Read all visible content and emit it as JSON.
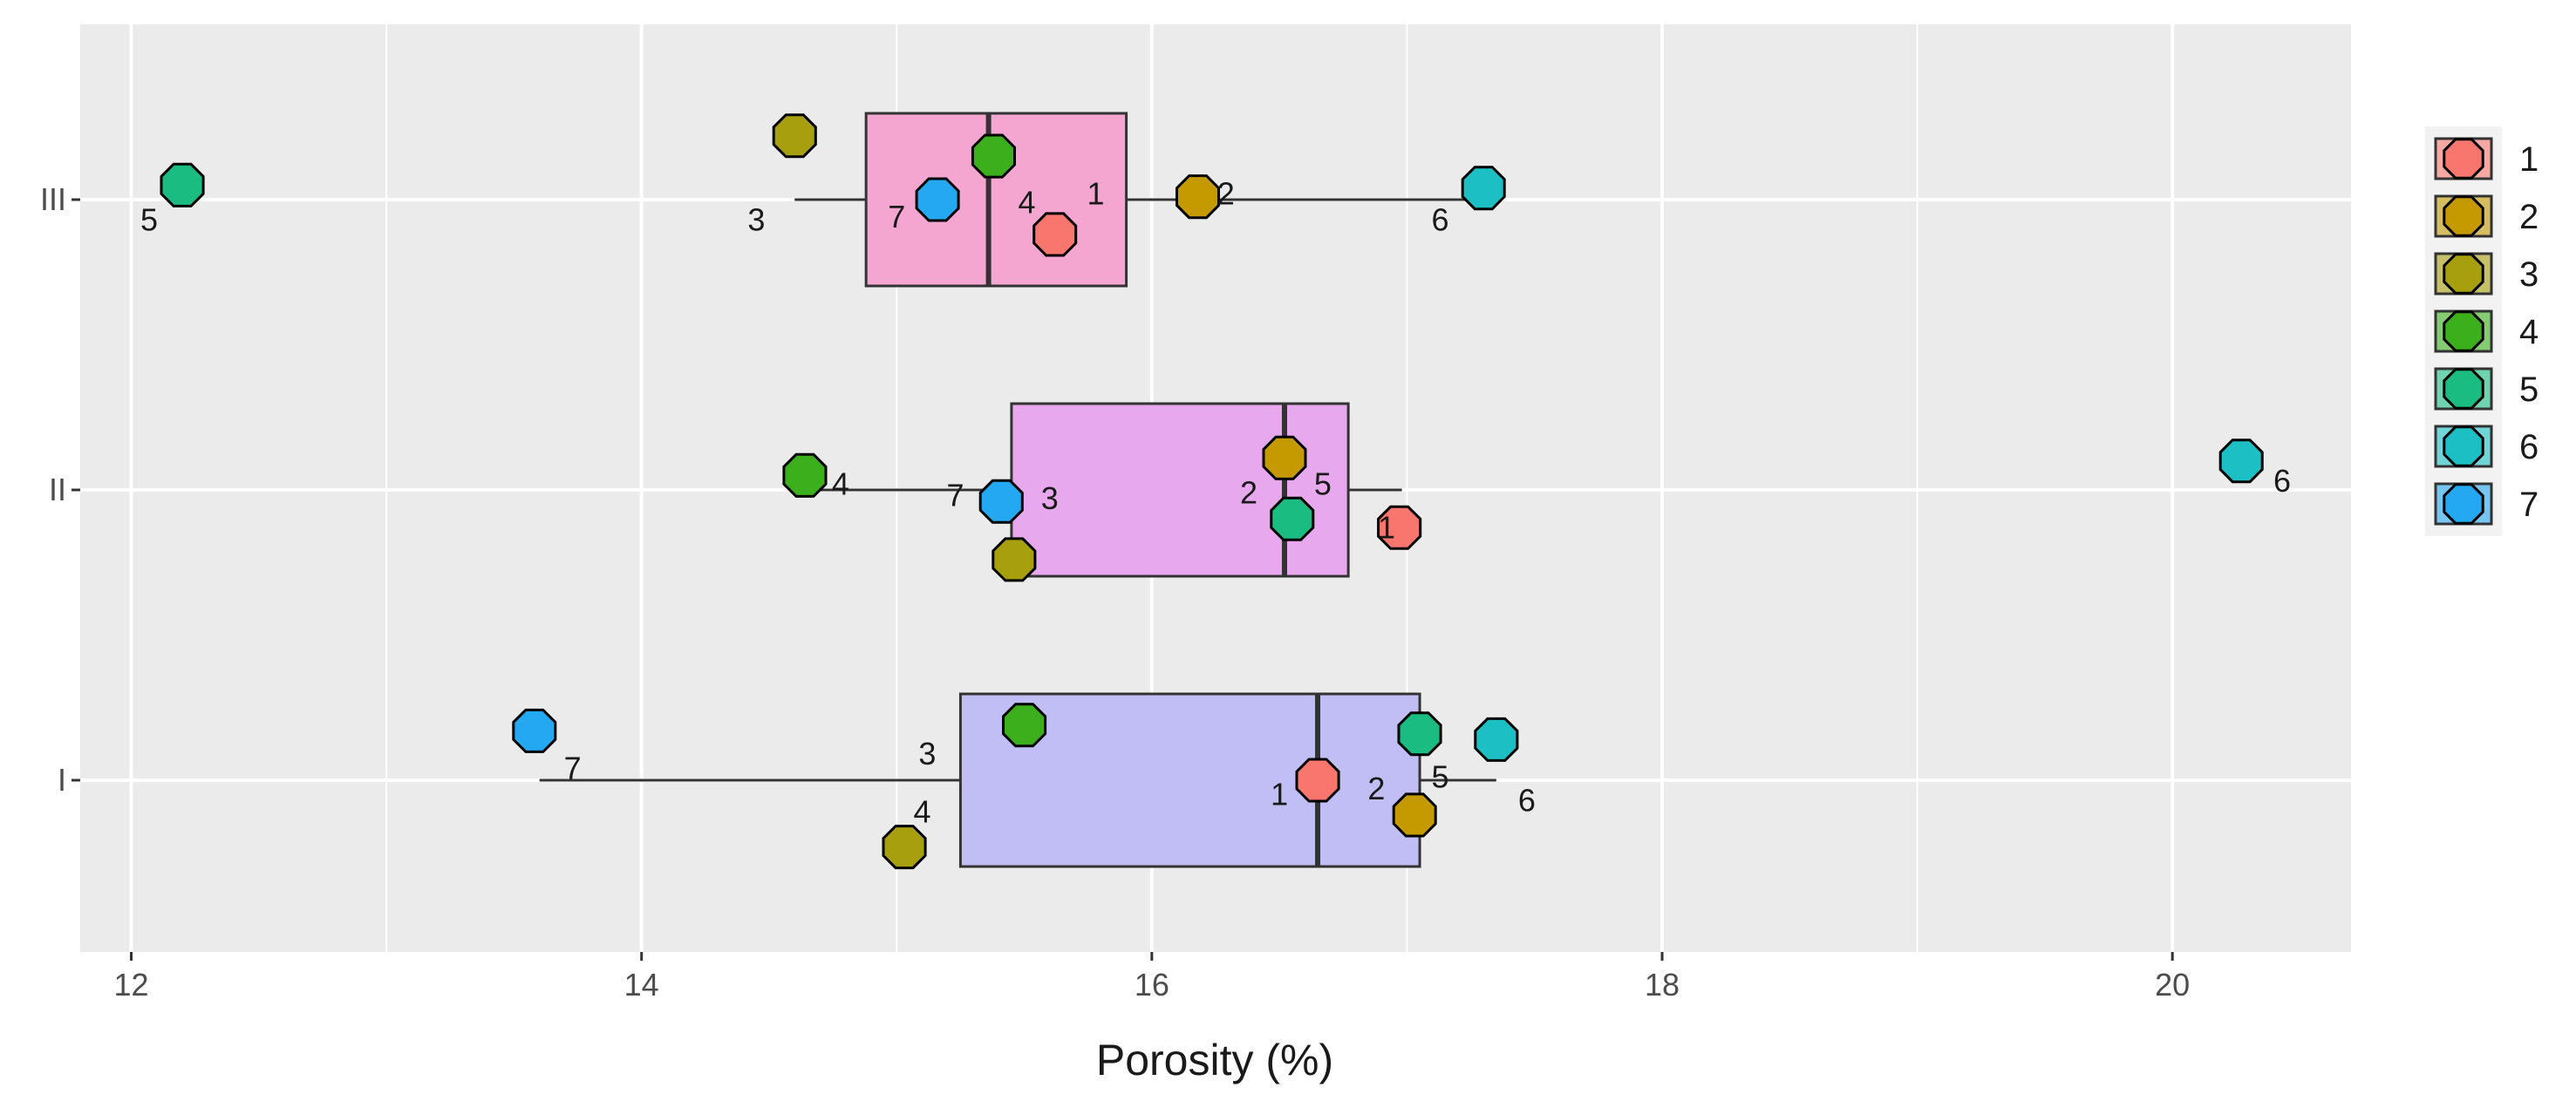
{
  "chart_data": {
    "type": "boxplot",
    "orientation": "horizontal",
    "title": "",
    "xlabel": "Porosity (%)",
    "ylabel": "",
    "xlim": [
      11.8,
      20.7
    ],
    "x_ticks": [
      {
        "value": 12,
        "label": "12"
      },
      {
        "value": 14,
        "label": "14"
      },
      {
        "value": 16,
        "label": "16"
      },
      {
        "value": 18,
        "label": "18"
      },
      {
        "value": 20,
        "label": "20"
      }
    ],
    "categories": [
      "I",
      "II",
      "III"
    ],
    "groups": [
      {
        "name": "I",
        "fill": "#C0BEF4",
        "box": {
          "min": 13.6,
          "q1": 15.25,
          "median": 16.65,
          "q3": 17.05,
          "max": 17.35
        },
        "points": [
          {
            "series": "1",
            "value": 16.65,
            "jitter": 0.0,
            "label": "1",
            "label_value": 16.5,
            "label_jitter": -0.05
          },
          {
            "series": "2",
            "value": 17.03,
            "jitter": -0.12,
            "label": "2",
            "label_value": 16.88,
            "label_jitter": -0.03
          },
          {
            "series": "3",
            "value": 15.03,
            "jitter": -0.23,
            "label": "3",
            "label_value": 15.12,
            "label_jitter": 0.09
          },
          {
            "series": "4",
            "value": 15.5,
            "jitter": 0.19,
            "label": "4",
            "label_value": 15.1,
            "label_jitter": -0.11
          },
          {
            "series": "5",
            "value": 17.05,
            "jitter": 0.16,
            "label": "5",
            "label_value": 17.13,
            "label_jitter": 0.01
          },
          {
            "series": "6",
            "value": 17.35,
            "jitter": 0.14,
            "label": "6",
            "label_value": 17.47,
            "label_jitter": -0.07
          },
          {
            "series": "7",
            "value": 13.58,
            "jitter": 0.17,
            "label": "7",
            "label_value": 13.73,
            "label_jitter": 0.04
          }
        ]
      },
      {
        "name": "II",
        "fill": "#E8A8EE",
        "box": {
          "min": 14.65,
          "q1": 15.45,
          "median": 16.52,
          "q3": 16.77,
          "max": 16.98
        },
        "points": [
          {
            "series": "1",
            "value": 16.97,
            "jitter": -0.13,
            "label": "1",
            "label_value": 16.92,
            "label_jitter": -0.13
          },
          {
            "series": "2",
            "value": 16.52,
            "jitter": 0.11,
            "label": "2",
            "label_value": 16.38,
            "label_jitter": -0.01
          },
          {
            "series": "3",
            "value": 15.46,
            "jitter": -0.24,
            "label": "3",
            "label_value": 15.6,
            "label_jitter": -0.03
          },
          {
            "series": "4",
            "value": 14.64,
            "jitter": 0.05,
            "label": "4",
            "label_value": 14.78,
            "label_jitter": 0.02
          },
          {
            "series": "5",
            "value": 16.55,
            "jitter": -0.1,
            "label": "5",
            "label_value": 16.67,
            "label_jitter": 0.02
          },
          {
            "series": "6",
            "value": 20.27,
            "jitter": 0.1,
            "label": "6",
            "label_value": 20.43,
            "label_jitter": 0.03
          },
          {
            "series": "7",
            "value": 15.41,
            "jitter": -0.04,
            "label": "7",
            "label_value": 15.23,
            "label_jitter": -0.02
          }
        ]
      },
      {
        "name": "III",
        "fill": "#F4A6D0",
        "box": {
          "min": 14.6,
          "q1": 14.88,
          "median": 15.36,
          "q3": 15.9,
          "max": 17.33
        },
        "points": [
          {
            "series": "1",
            "value": 15.62,
            "jitter": -0.12,
            "label": "1",
            "label_value": 15.78,
            "label_jitter": 0.02
          },
          {
            "series": "2",
            "value": 16.18,
            "jitter": 0.01,
            "label": "2",
            "label_value": 16.29,
            "label_jitter": 0.02
          },
          {
            "series": "3",
            "value": 14.6,
            "jitter": 0.22,
            "label": "3",
            "label_value": 14.45,
            "label_jitter": -0.07
          },
          {
            "series": "4",
            "value": 15.38,
            "jitter": 0.15,
            "label": "4",
            "label_value": 15.51,
            "label_jitter": -0.01
          },
          {
            "series": "5",
            "value": 12.2,
            "jitter": 0.05,
            "label": "5",
            "label_value": 12.07,
            "label_jitter": -0.07
          },
          {
            "series": "6",
            "value": 17.3,
            "jitter": 0.04,
            "label": "6",
            "label_value": 17.13,
            "label_jitter": -0.07
          },
          {
            "series": "7",
            "value": 15.16,
            "jitter": 0.0,
            "label": "7",
            "label_value": 15.0,
            "label_jitter": -0.06
          }
        ]
      }
    ],
    "legend": {
      "position": "right",
      "title": "",
      "entries": [
        {
          "label": "1",
          "color": "#F8766D"
        },
        {
          "label": "2",
          "color": "#C49A00"
        },
        {
          "label": "3",
          "color": "#A89F0E"
        },
        {
          "label": "4",
          "color": "#3BB01C"
        },
        {
          "label": "5",
          "color": "#1ABC82"
        },
        {
          "label": "6",
          "color": "#1BBFC4"
        },
        {
          "label": "7",
          "color": "#24A8F2"
        }
      ]
    },
    "grid": true,
    "panel_background": "#EBEBEB",
    "grid_color": "#FFFFFF"
  }
}
